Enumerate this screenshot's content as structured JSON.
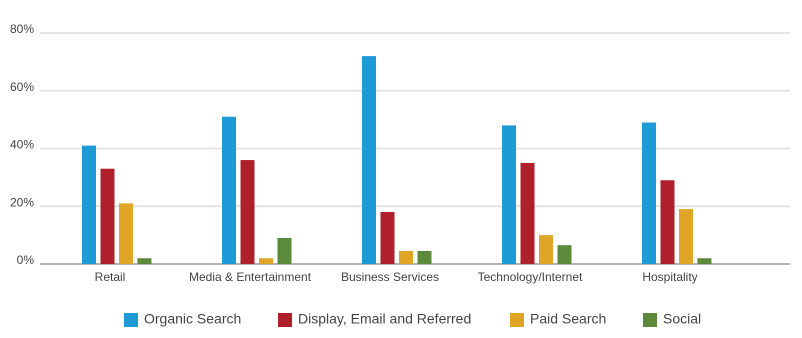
{
  "chart_data": {
    "type": "bar",
    "categories": [
      "Retail",
      "Media & Entertainment",
      "Business Services",
      "Technology/Internet",
      "Hospitality"
    ],
    "series": [
      {
        "name": "Organic Search",
        "color": "#1e9bd7",
        "values": [
          41,
          51,
          72,
          48,
          49
        ]
      },
      {
        "name": "Display, Email and Referred",
        "color": "#b0202a",
        "values": [
          33,
          36,
          18,
          35,
          29
        ]
      },
      {
        "name": "Paid Search",
        "color": "#e0a526",
        "values": [
          21,
          2,
          4.5,
          10,
          19
        ]
      },
      {
        "name": "Social",
        "color": "#5a8a3a",
        "values": [
          2,
          9,
          4.5,
          6.5,
          2
        ]
      }
    ],
    "ylim": [
      0,
      80
    ],
    "yticks": [
      {
        "value": 0,
        "label": "0%"
      },
      {
        "value": 20,
        "label": "20%"
      },
      {
        "value": 40,
        "label": "40%"
      },
      {
        "value": 60,
        "label": "60%"
      },
      {
        "value": 80,
        "label": "80%"
      }
    ],
    "grid": true,
    "legend": "bottom"
  }
}
